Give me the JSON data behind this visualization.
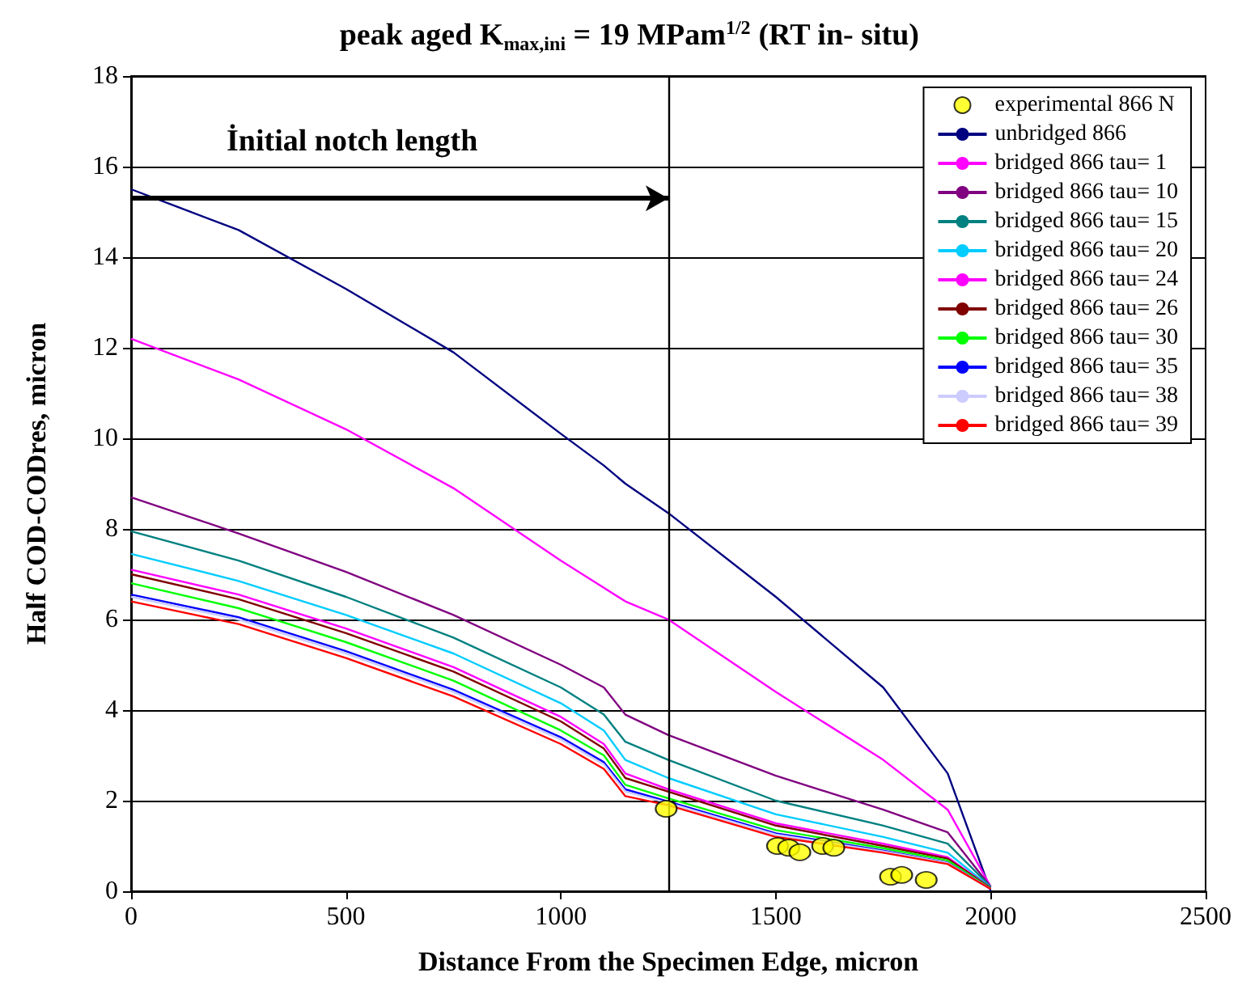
{
  "chart_data": {
    "type": "line",
    "title": "peak aged K$_{max,ini}$ = 19 MPam$^{1/2}$ (RT in- situ)",
    "xlabel": "Distance From the Specimen Edge, micron",
    "ylabel": "Half COD-CODres, micron",
    "x": [
      0,
      250,
      500,
      750,
      1000,
      1100,
      1150,
      1250,
      1500,
      1750,
      1900,
      2000
    ],
    "xlim": [
      0,
      2500
    ],
    "xticks": [
      0,
      500,
      1000,
      1500,
      2000,
      2500
    ],
    "ylim": [
      0,
      18
    ],
    "yticks": [
      0,
      2,
      4,
      6,
      8,
      10,
      12,
      14,
      16,
      18
    ],
    "grid": "y",
    "legend": "top right",
    "marker": "none",
    "line_style": "solid",
    "ref_lines": [
      {
        "axis": "x",
        "value": 1250,
        "color": "#000000"
      }
    ],
    "annotations": [
      "İnitial notch length"
    ],
    "series": [
      {
        "name": "experimental 866 N",
        "type": "scatter",
        "marker": "circle",
        "color": "#ffff00",
        "x": [
          1245,
          1504,
          1530,
          1556,
          1609,
          1635,
          1767,
          1793,
          1850
        ],
        "values": [
          1.82,
          1.0,
          0.96,
          0.86,
          1.0,
          0.96,
          0.32,
          0.36,
          0.25
        ]
      },
      {
        "name": "unbridged 866",
        "color": "#000080",
        "values": [
          15.5,
          14.6,
          13.3,
          11.9,
          10.1,
          9.4,
          9.0,
          8.35,
          6.5,
          4.5,
          2.6,
          0
        ]
      },
      {
        "name": "bridged 866 tau= 1",
        "color": "#ff00ff",
        "values": [
          12.2,
          11.3,
          10.2,
          8.9,
          7.3,
          6.7,
          6.4,
          6.0,
          4.4,
          2.9,
          1.8,
          0.1
        ]
      },
      {
        "name": "bridged 866 tau= 10",
        "color": "#800080",
        "values": [
          8.7,
          7.9,
          7.05,
          6.1,
          5.0,
          4.5,
          3.9,
          3.45,
          2.55,
          1.8,
          1.3,
          0.1
        ]
      },
      {
        "name": "bridged 866 tau= 15",
        "color": "#008080",
        "values": [
          7.95,
          7.3,
          6.5,
          5.6,
          4.5,
          3.9,
          3.3,
          2.9,
          2.0,
          1.45,
          1.05,
          0.1
        ]
      },
      {
        "name": "bridged 866 tau= 20",
        "color": "#00ccff",
        "values": [
          7.45,
          6.85,
          6.1,
          5.25,
          4.15,
          3.55,
          2.9,
          2.5,
          1.7,
          1.2,
          0.85,
          0.08
        ]
      },
      {
        "name": "bridged 866 tau= 24",
        "color": "#ff00ff",
        "values": [
          7.1,
          6.55,
          5.8,
          4.95,
          3.85,
          3.25,
          2.6,
          2.25,
          1.5,
          1.05,
          0.75,
          0.07
        ]
      },
      {
        "name": "bridged 866 tau= 26",
        "color": "#800000",
        "values": [
          7.0,
          6.45,
          5.7,
          4.85,
          3.75,
          3.15,
          2.5,
          2.2,
          1.45,
          1.0,
          0.72,
          0.07
        ]
      },
      {
        "name": "bridged 866 tau= 30",
        "color": "#00ff00",
        "values": [
          6.8,
          6.25,
          5.5,
          4.65,
          3.55,
          3.0,
          2.35,
          2.05,
          1.35,
          0.95,
          0.68,
          0.06
        ]
      },
      {
        "name": "bridged 866 tau= 35",
        "color": "#0000ff",
        "values": [
          6.55,
          6.05,
          5.3,
          4.45,
          3.4,
          2.85,
          2.25,
          1.98,
          1.28,
          0.9,
          0.63,
          0.05
        ]
      },
      {
        "name": "bridged 866 tau= 38",
        "color": "#ccccff",
        "values": [
          6.5,
          6.0,
          5.25,
          4.4,
          3.35,
          2.8,
          2.2,
          1.95,
          1.25,
          0.88,
          0.62,
          0.05
        ]
      },
      {
        "name": "bridged 866 tau= 39",
        "color": "#ff0000",
        "values": [
          6.4,
          5.9,
          5.15,
          4.3,
          3.25,
          2.7,
          2.1,
          1.9,
          1.2,
          0.85,
          0.6,
          0.05
        ]
      }
    ]
  }
}
